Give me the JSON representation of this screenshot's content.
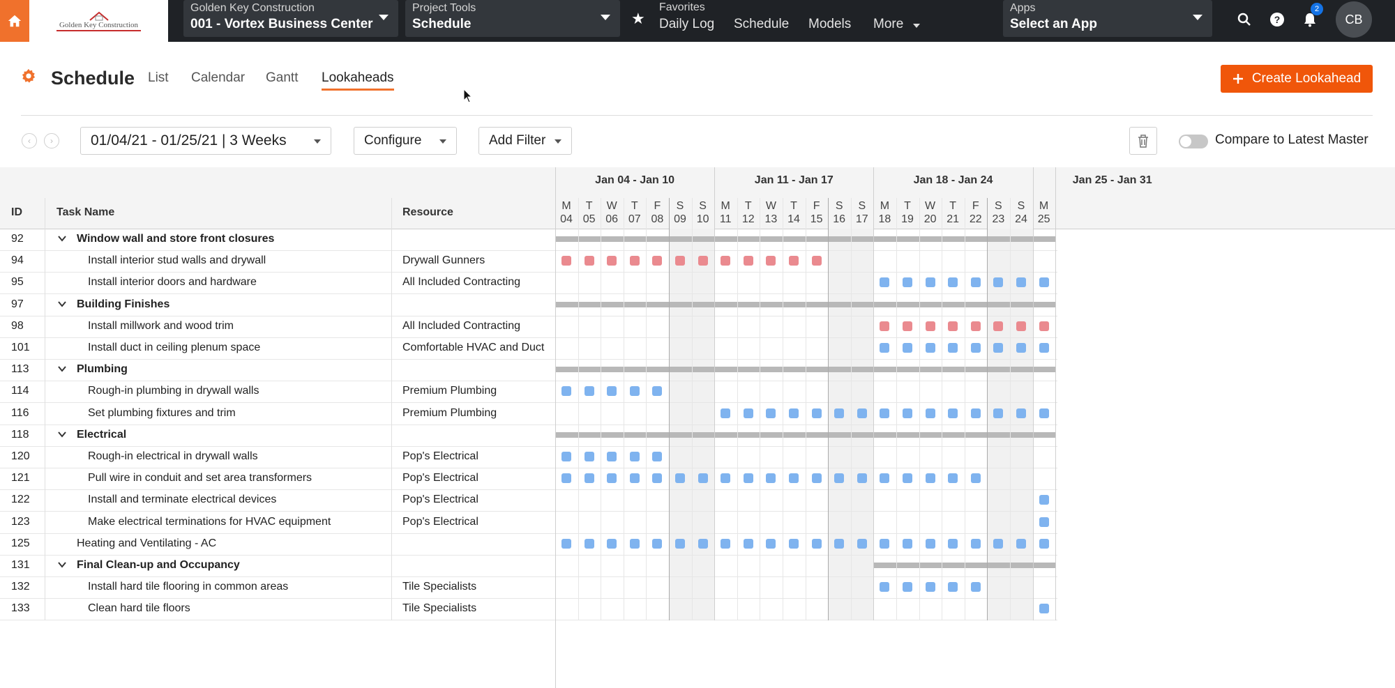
{
  "topbar": {
    "logo_text": "Golden Key Construction",
    "company_label": "Golden Key Construction",
    "project_value": "001 - Vortex Business Center",
    "tools_label": "Project Tools",
    "tools_value": "Schedule",
    "favorites_label": "Favorites",
    "favorites": [
      "Daily Log",
      "Schedule",
      "Models"
    ],
    "more_label": "More",
    "apps_label": "Apps",
    "apps_value": "Select an App",
    "notification_count": "2",
    "avatar_initials": "CB"
  },
  "page": {
    "title": "Schedule",
    "tabs": [
      "List",
      "Calendar",
      "Gantt",
      "Lookaheads"
    ],
    "active_tab": "Lookaheads",
    "create_button": "Create Lookahead"
  },
  "toolbar": {
    "date_range": "01/04/21 - 01/25/21 | 3 Weeks",
    "configure": "Configure",
    "add_filter": "Add Filter",
    "compare_label": "Compare to Latest Master",
    "compare_on": false
  },
  "grid": {
    "columns": {
      "id": "ID",
      "task": "Task Name",
      "resource": "Resource"
    },
    "weeks": [
      "Jan 04 - Jan 10",
      "Jan 11 - Jan 17",
      "Jan 18 - Jan 24",
      "Jan 25 - Jan 31"
    ],
    "days": [
      {
        "d": "M",
        "n": "04"
      },
      {
        "d": "T",
        "n": "05"
      },
      {
        "d": "W",
        "n": "06"
      },
      {
        "d": "T",
        "n": "07"
      },
      {
        "d": "F",
        "n": "08"
      },
      {
        "d": "S",
        "n": "09"
      },
      {
        "d": "S",
        "n": "10"
      },
      {
        "d": "M",
        "n": "11"
      },
      {
        "d": "T",
        "n": "12"
      },
      {
        "d": "W",
        "n": "13"
      },
      {
        "d": "T",
        "n": "14"
      },
      {
        "d": "F",
        "n": "15"
      },
      {
        "d": "S",
        "n": "16"
      },
      {
        "d": "S",
        "n": "17"
      },
      {
        "d": "M",
        "n": "18"
      },
      {
        "d": "T",
        "n": "19"
      },
      {
        "d": "W",
        "n": "20"
      },
      {
        "d": "T",
        "n": "21"
      },
      {
        "d": "F",
        "n": "22"
      },
      {
        "d": "S",
        "n": "23"
      },
      {
        "d": "S",
        "n": "24"
      },
      {
        "d": "M",
        "n": "25"
      }
    ],
    "rows": [
      {
        "id": "92",
        "name": "Window wall and store front closures",
        "resource": "",
        "type": "group",
        "bar_from": 0,
        "bar_to": 22
      },
      {
        "id": "94",
        "name": "Install interior stud walls and drywall",
        "resource": "Drywall Gunners",
        "type": "task",
        "days": [
          0,
          1,
          2,
          3,
          4,
          5,
          6,
          7,
          8,
          9,
          10,
          11
        ],
        "color": "red"
      },
      {
        "id": "95",
        "name": "Install interior doors and hardware",
        "resource": "All Included Contracting",
        "type": "task",
        "days": [
          14,
          15,
          16,
          17,
          18,
          19,
          20,
          21
        ],
        "color": "blue"
      },
      {
        "id": "97",
        "name": "Building Finishes",
        "resource": "",
        "type": "group",
        "bar_from": 0,
        "bar_to": 22
      },
      {
        "id": "98",
        "name": "Install millwork and wood trim",
        "resource": "All Included Contracting",
        "type": "task",
        "days": [
          14,
          15,
          16,
          17,
          18,
          19,
          20,
          21
        ],
        "color": "red"
      },
      {
        "id": "101",
        "name": "Install duct in ceiling plenum space",
        "resource": "Comfortable HVAC and Duct",
        "type": "task",
        "days": [
          14,
          15,
          16,
          17,
          18,
          19,
          20,
          21
        ],
        "color": "blue"
      },
      {
        "id": "113",
        "name": "Plumbing",
        "resource": "",
        "type": "group",
        "bar_from": 0,
        "bar_to": 22
      },
      {
        "id": "114",
        "name": "Rough-in plumbing in drywall walls",
        "resource": "Premium Plumbing",
        "type": "task",
        "days": [
          0,
          1,
          2,
          3,
          4
        ],
        "color": "blue"
      },
      {
        "id": "116",
        "name": "Set plumbing fixtures and trim",
        "resource": "Premium Plumbing",
        "type": "task",
        "days": [
          7,
          8,
          9,
          10,
          11,
          12,
          13,
          14,
          15,
          16,
          17,
          18,
          19,
          20,
          21
        ],
        "color": "blue"
      },
      {
        "id": "118",
        "name": "Electrical",
        "resource": "",
        "type": "group",
        "bar_from": 0,
        "bar_to": 22
      },
      {
        "id": "120",
        "name": "Rough-in electrical in drywall walls",
        "resource": "Pop's Electrical",
        "type": "task",
        "days": [
          0,
          1,
          2,
          3,
          4
        ],
        "color": "blue"
      },
      {
        "id": "121",
        "name": "Pull wire in conduit and set area transformers",
        "resource": "Pop's Electrical",
        "type": "task",
        "days": [
          0,
          1,
          2,
          3,
          4,
          5,
          6,
          7,
          8,
          9,
          10,
          11,
          12,
          13,
          14,
          15,
          16,
          17,
          18
        ],
        "color": "blue"
      },
      {
        "id": "122",
        "name": "Install and terminate electrical devices",
        "resource": "Pop's Electrical",
        "type": "task",
        "days": [
          21
        ],
        "color": "blue"
      },
      {
        "id": "123",
        "name": "Make electrical terminations for HVAC equipment",
        "resource": "Pop's Electrical",
        "type": "task",
        "days": [
          21
        ],
        "color": "blue"
      },
      {
        "id": "125",
        "name": "Heating and Ventilating - AC",
        "resource": "",
        "type": "plain",
        "days": [
          0,
          1,
          2,
          3,
          4,
          5,
          6,
          7,
          8,
          9,
          10,
          11,
          12,
          13,
          14,
          15,
          16,
          17,
          18,
          19,
          20,
          21
        ],
        "color": "blue"
      },
      {
        "id": "131",
        "name": "Final Clean-up and Occupancy",
        "resource": "",
        "type": "group",
        "bar_from": 14,
        "bar_to": 22
      },
      {
        "id": "132",
        "name": "Install hard tile flooring in common areas",
        "resource": "Tile Specialists",
        "type": "task",
        "days": [
          14,
          15,
          16,
          17,
          18
        ],
        "color": "blue"
      },
      {
        "id": "133",
        "name": "Clean hard tile floors",
        "resource": "Tile Specialists",
        "type": "task",
        "days": [
          21
        ],
        "color": "blue"
      }
    ]
  }
}
